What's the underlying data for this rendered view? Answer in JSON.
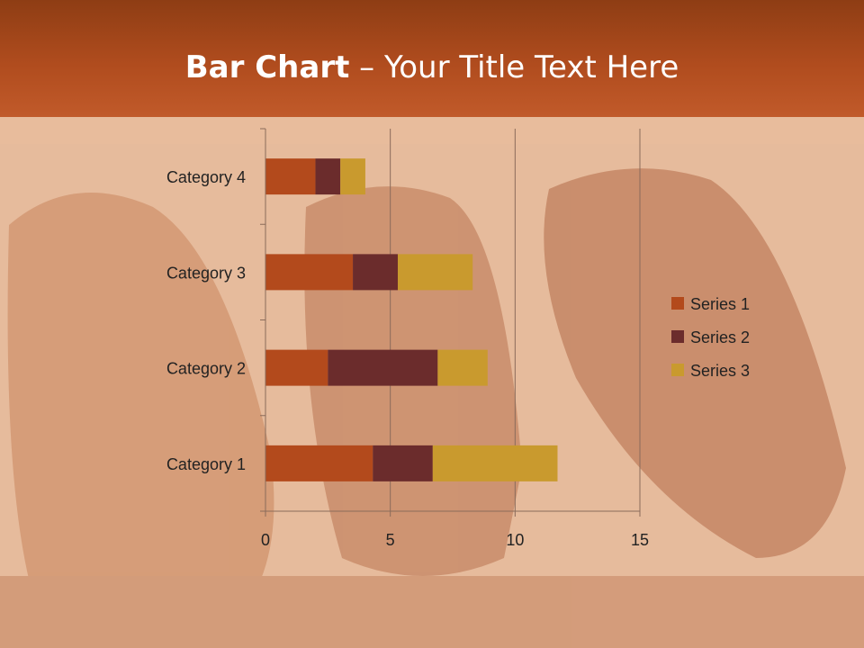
{
  "slide": {
    "title_bold": "Bar Chart",
    "title_sep": " – ",
    "title_rest": "Your Title Text Here"
  },
  "colors": {
    "header": "#b04c1e",
    "axis": "#8a6b5a"
  },
  "chart_data": {
    "type": "bar",
    "orientation": "horizontal",
    "stacked": true,
    "categories": [
      "Category 1",
      "Category 2",
      "Category 3",
      "Category 4"
    ],
    "series": [
      {
        "name": "Series 1",
        "values": [
          4.3,
          2.5,
          3.5,
          2
        ],
        "color": "#b34a1c"
      },
      {
        "name": "Series 2",
        "values": [
          2.4,
          4.4,
          1.8,
          1
        ],
        "color": "#6b2c2c"
      },
      {
        "name": "Series 3",
        "values": [
          5,
          2,
          3,
          1
        ],
        "color": "#c99a2e"
      }
    ],
    "xlim": [
      0,
      15
    ],
    "xticks": [
      "0",
      "5",
      "10",
      "15"
    ],
    "grid": "vertical",
    "legend": "right"
  }
}
